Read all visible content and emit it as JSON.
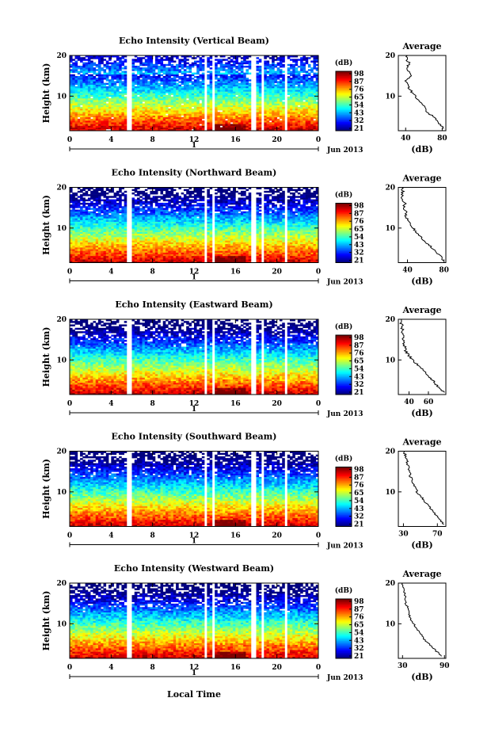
{
  "figure": {
    "xlabel": "Local Time",
    "date_label": "Jun 2013",
    "day_label": "1",
    "colorbar_unit": "(dB)",
    "avg_title": "Average",
    "avg_xlabel": "(dB)"
  },
  "chart_data": [
    {
      "type": "heatmap",
      "title": "Echo Intensity (Vertical Beam)",
      "ylabel": "Height (km)",
      "x_ticks": [
        "0",
        "4",
        "8",
        "12",
        "16",
        "20",
        "0"
      ],
      "xlim_hours": [
        0,
        24
      ],
      "y_ticks": [
        "10",
        "20"
      ],
      "ylim_km": [
        1.5,
        20
      ],
      "colorbar_ticks": [
        "98",
        "87",
        "76",
        "65",
        "54",
        "43",
        "32",
        "21"
      ],
      "avg_profile": {
        "title": "Average",
        "xlabel": "(dB)",
        "x_ticks": [
          "40",
          "80"
        ],
        "xlim": [
          32,
          84
        ],
        "y_ticks": [
          "10",
          "20"
        ],
        "ylim_km": [
          1.5,
          20
        ],
        "values": [
          [
            2,
            82
          ],
          [
            3,
            78
          ],
          [
            4,
            74
          ],
          [
            5,
            70
          ],
          [
            6,
            64
          ],
          [
            7,
            62
          ],
          [
            8,
            58
          ],
          [
            9,
            55
          ],
          [
            10,
            50
          ],
          [
            11,
            47
          ],
          [
            12,
            44
          ],
          [
            13,
            41
          ],
          [
            14,
            40
          ],
          [
            15,
            46
          ],
          [
            16,
            44
          ],
          [
            17,
            42
          ],
          [
            18,
            44
          ],
          [
            19,
            41
          ],
          [
            20,
            42
          ]
        ]
      }
    },
    {
      "type": "heatmap",
      "title": "Echo Intensity (Northward Beam)",
      "ylabel": "Height (km)",
      "x_ticks": [
        "0",
        "4",
        "8",
        "12",
        "16",
        "20",
        "0"
      ],
      "xlim_hours": [
        0,
        24
      ],
      "y_ticks": [
        "10",
        "20"
      ],
      "ylim_km": [
        1.5,
        20
      ],
      "colorbar_ticks": [
        "98",
        "87",
        "76",
        "65",
        "54",
        "43",
        "32",
        "21"
      ],
      "avg_profile": {
        "title": "Average",
        "xlabel": "(dB)",
        "x_ticks": [
          "40",
          "80"
        ],
        "xlim": [
          30,
          82
        ],
        "y_ticks": [
          "10",
          "20"
        ],
        "ylim_km": [
          1.5,
          20
        ],
        "values": [
          [
            2,
            80
          ],
          [
            3,
            76
          ],
          [
            4,
            72
          ],
          [
            5,
            68
          ],
          [
            6,
            62
          ],
          [
            7,
            58
          ],
          [
            8,
            54
          ],
          [
            9,
            50
          ],
          [
            10,
            46
          ],
          [
            11,
            43
          ],
          [
            12,
            40
          ],
          [
            13,
            38
          ],
          [
            14,
            38
          ],
          [
            15,
            36
          ],
          [
            16,
            37
          ],
          [
            17,
            35
          ],
          [
            18,
            34
          ],
          [
            19,
            35
          ],
          [
            20,
            34
          ]
        ]
      }
    },
    {
      "type": "heatmap",
      "title": "Echo Intensity (Eastward Beam)",
      "ylabel": "Height (km)",
      "x_ticks": [
        "0",
        "4",
        "8",
        "12",
        "16",
        "20",
        "0"
      ],
      "xlim_hours": [
        0,
        24
      ],
      "y_ticks": [
        "10",
        "20"
      ],
      "ylim_km": [
        1.5,
        20
      ],
      "colorbar_ticks": [
        "98",
        "87",
        "76",
        "65",
        "54",
        "43",
        "32",
        "21"
      ],
      "avg_profile": {
        "title": "Average",
        "xlabel": "(dB)",
        "x_ticks": [
          "40",
          "60"
        ],
        "xlim": [
          29,
          78
        ],
        "y_ticks": [
          "10",
          "20"
        ],
        "ylim_km": [
          1.5,
          20
        ],
        "values": [
          [
            2,
            77
          ],
          [
            3,
            72
          ],
          [
            4,
            68
          ],
          [
            5,
            64
          ],
          [
            6,
            60
          ],
          [
            7,
            56
          ],
          [
            8,
            52
          ],
          [
            9,
            48
          ],
          [
            10,
            44
          ],
          [
            11,
            40
          ],
          [
            12,
            37
          ],
          [
            13,
            36
          ],
          [
            14,
            35
          ],
          [
            15,
            34
          ],
          [
            16,
            35
          ],
          [
            17,
            33
          ],
          [
            18,
            33
          ],
          [
            19,
            32
          ],
          [
            20,
            32
          ]
        ]
      }
    },
    {
      "type": "heatmap",
      "title": "Echo Intensity (Southward Beam)",
      "ylabel": "Height (km)",
      "x_ticks": [
        "0",
        "4",
        "8",
        "12",
        "16",
        "20",
        "0"
      ],
      "xlim_hours": [
        0,
        24
      ],
      "y_ticks": [
        "10",
        "20"
      ],
      "ylim_km": [
        1.5,
        20
      ],
      "colorbar_ticks": [
        "98",
        "87",
        "76",
        "65",
        "54",
        "43",
        "32",
        "21"
      ],
      "avg_profile": {
        "title": "Average",
        "xlabel": "(dB)",
        "x_ticks": [
          "30",
          "70"
        ],
        "xlim": [
          24,
          80
        ],
        "y_ticks": [
          "10",
          "20"
        ],
        "ylim_km": [
          1.5,
          20
        ],
        "values": [
          [
            2,
            78
          ],
          [
            3,
            74
          ],
          [
            4,
            70
          ],
          [
            5,
            66
          ],
          [
            6,
            62
          ],
          [
            7,
            58
          ],
          [
            8,
            54
          ],
          [
            9,
            50
          ],
          [
            10,
            46
          ],
          [
            11,
            44
          ],
          [
            12,
            42
          ],
          [
            13,
            40
          ],
          [
            14,
            38
          ],
          [
            15,
            38
          ],
          [
            16,
            36
          ],
          [
            17,
            35
          ],
          [
            18,
            33
          ],
          [
            19,
            32
          ],
          [
            20,
            31
          ]
        ]
      }
    },
    {
      "type": "heatmap",
      "title": "Echo Intensity (Westward Beam)",
      "ylabel": "Height (km)",
      "x_ticks": [
        "0",
        "4",
        "8",
        "12",
        "16",
        "20",
        "0"
      ],
      "xlim_hours": [
        0,
        24
      ],
      "y_ticks": [
        "10",
        "20"
      ],
      "ylim_km": [
        1.5,
        20
      ],
      "colorbar_ticks": [
        "98",
        "87",
        "76",
        "65",
        "54",
        "43",
        "32",
        "21"
      ],
      "avg_profile": {
        "title": "Average",
        "xlabel": "(dB)",
        "x_ticks": [
          "30",
          "90"
        ],
        "xlim": [
          24,
          92
        ],
        "y_ticks": [
          "10",
          "20"
        ],
        "ylim_km": [
          1.5,
          20
        ],
        "values": [
          [
            2,
            86
          ],
          [
            3,
            80
          ],
          [
            4,
            74
          ],
          [
            5,
            68
          ],
          [
            6,
            62
          ],
          [
            7,
            58
          ],
          [
            8,
            54
          ],
          [
            9,
            50
          ],
          [
            10,
            46
          ],
          [
            11,
            42
          ],
          [
            12,
            40
          ],
          [
            13,
            38
          ],
          [
            14,
            38
          ],
          [
            15,
            35
          ],
          [
            16,
            34
          ],
          [
            17,
            33
          ],
          [
            18,
            32
          ],
          [
            19,
            31
          ],
          [
            20,
            30
          ]
        ]
      }
    }
  ]
}
